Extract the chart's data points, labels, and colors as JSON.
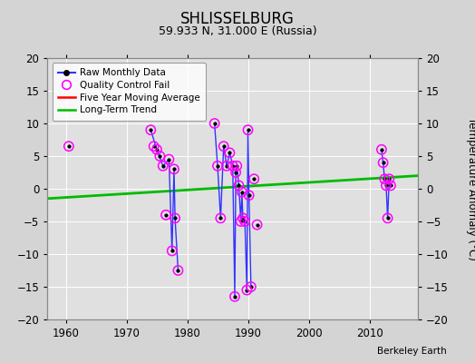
{
  "title": "SHLISSELBURG",
  "subtitle": "59.933 N, 31.000 E (Russia)",
  "ylabel": "Temperature Anomaly (°C)",
  "xlim": [
    1957,
    2018
  ],
  "ylim": [
    -20,
    20
  ],
  "yticks": [
    -20,
    -15,
    -10,
    -5,
    0,
    5,
    10,
    15,
    20
  ],
  "xticks": [
    1960,
    1970,
    1980,
    1990,
    2000,
    2010
  ],
  "attribution": "Berkeley Earth",
  "segments": [
    {
      "x": [
        1974.0,
        1975.0,
        1976.0,
        1977.0,
        1977.5,
        1977.83,
        1978.0,
        1978.5
      ],
      "y": [
        9.0,
        6.0,
        3.5,
        4.5,
        -9.5,
        3.0,
        -4.5,
        -12.5
      ]
    },
    {
      "x": [
        1984.5,
        1985.0,
        1985.5,
        1986.0,
        1986.5,
        1987.0,
        1987.5,
        1987.83,
        1988.0,
        1988.17,
        1988.5,
        1988.83,
        1989.0,
        1989.17,
        1989.5,
        1989.83,
        1990.0,
        1990.17,
        1990.5
      ],
      "y": [
        10.0,
        3.5,
        -4.5,
        6.5,
        3.5,
        5.5,
        3.5,
        -16.5,
        2.5,
        3.5,
        0.5,
        -5.0,
        -0.5,
        -4.5,
        -5.0,
        -15.5,
        9.0,
        -1.0,
        -15.0
      ]
    },
    {
      "x": [
        2012.0,
        2012.25,
        2012.5,
        2012.75,
        2013.0,
        2013.25,
        2013.5
      ],
      "y": [
        6.0,
        4.0,
        1.5,
        0.5,
        -4.5,
        1.5,
        0.5
      ]
    }
  ],
  "isolated_points": [
    [
      1960.5,
      6.5
    ],
    [
      1974.5,
      6.5
    ],
    [
      1975.5,
      5.0
    ],
    [
      1976.5,
      -4.0
    ],
    [
      1991.0,
      1.5
    ],
    [
      1991.5,
      -5.5
    ]
  ],
  "qc_fail_x": [
    1960.5,
    1974.0,
    1974.5,
    1975.0,
    1975.5,
    1976.0,
    1976.5,
    1977.0,
    1977.5,
    1977.83,
    1978.0,
    1978.5,
    1984.5,
    1985.0,
    1985.5,
    1986.0,
    1986.5,
    1987.0,
    1987.5,
    1987.83,
    1988.0,
    1988.17,
    1988.5,
    1988.83,
    1989.0,
    1989.17,
    1989.5,
    1989.83,
    1990.0,
    1990.17,
    1990.5,
    1991.0,
    1991.5,
    2012.0,
    2012.25,
    2012.5,
    2012.75,
    2013.0,
    2013.25,
    2013.5
  ],
  "qc_fail_y": [
    6.5,
    9.0,
    6.5,
    6.0,
    5.0,
    3.5,
    -4.0,
    4.5,
    -9.5,
    3.0,
    -4.5,
    -12.5,
    10.0,
    3.5,
    -4.5,
    6.5,
    3.5,
    5.5,
    3.5,
    -16.5,
    2.5,
    3.5,
    0.5,
    -5.0,
    -0.5,
    -4.5,
    -5.0,
    -15.5,
    9.0,
    -1.0,
    -15.0,
    1.5,
    -5.5,
    6.0,
    4.0,
    1.5,
    0.5,
    -4.5,
    1.5,
    0.5
  ],
  "long_trend_x": [
    1957,
    2018
  ],
  "long_trend_y": [
    -1.5,
    2.0
  ],
  "colors": {
    "raw_line": "#3333ff",
    "raw_dot": "#000000",
    "qc_fail": "#ff00ff",
    "five_year": "#ff0000",
    "long_trend": "#00bb00",
    "grid": "#ffffff",
    "fig_bg": "#d4d4d4",
    "plot_bg": "#e0e0e0"
  }
}
